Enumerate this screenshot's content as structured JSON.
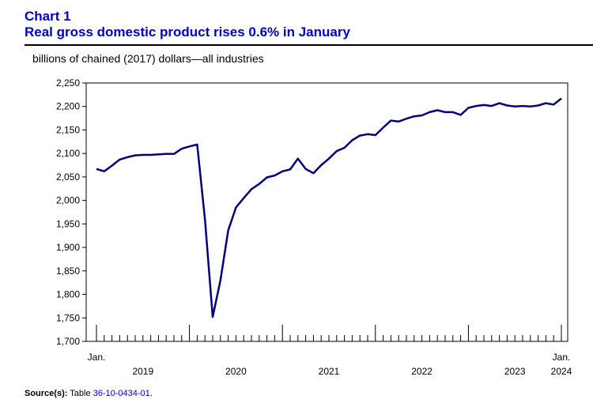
{
  "header": {
    "chart_number": "Chart 1",
    "title": "Real gross domestic product rises 0.6% in January"
  },
  "source": {
    "label": "Source(s):",
    "prefix": " Table ",
    "table_id": "36-10-0434-01",
    "suffix": "."
  },
  "colors": {
    "line": "#000080",
    "title": "#0000cc",
    "axis": "#000000"
  },
  "chart_data": {
    "type": "line",
    "title": "Real gross domestic product rises 0.6% in January",
    "ylabel": "billions of chained (2017) dollars—all industries",
    "xlabel": "",
    "ylim": [
      1700,
      2250
    ],
    "yticks": [
      1700,
      1750,
      1800,
      1850,
      1900,
      1950,
      2000,
      2050,
      2100,
      2150,
      2200,
      2250
    ],
    "ytick_labels": [
      "1,700",
      "1,750",
      "1,800",
      "1,850",
      "1,900",
      "1,950",
      "2,000",
      "2,050",
      "2,100",
      "2,150",
      "2,200",
      "2,250"
    ],
    "x_start_label": "Jan.",
    "x_end_label": "Jan.",
    "year_labels": [
      "2019",
      "2020",
      "2021",
      "2022",
      "2023",
      "2024"
    ],
    "months_count": 61,
    "grid": false,
    "series": [
      {
        "name": "Real GDP, all industries",
        "values": [
          2067,
          2062,
          2074,
          2087,
          2092,
          2096,
          2097,
          2097,
          2098,
          2099,
          2099,
          2110,
          2115,
          2119,
          1960,
          1752,
          1830,
          1936,
          1985,
          2005,
          2024,
          2035,
          2049,
          2053,
          2062,
          2066,
          2089,
          2067,
          2058,
          2075,
          2089,
          2105,
          2112,
          2128,
          2138,
          2141,
          2139,
          2155,
          2170,
          2168,
          2174,
          2179,
          2181,
          2188,
          2192,
          2188,
          2188,
          2182,
          2197,
          2201,
          2203,
          2201,
          2207,
          2202,
          2200,
          2201,
          2200,
          2202,
          2207,
          2204,
          2217
        ]
      }
    ]
  }
}
